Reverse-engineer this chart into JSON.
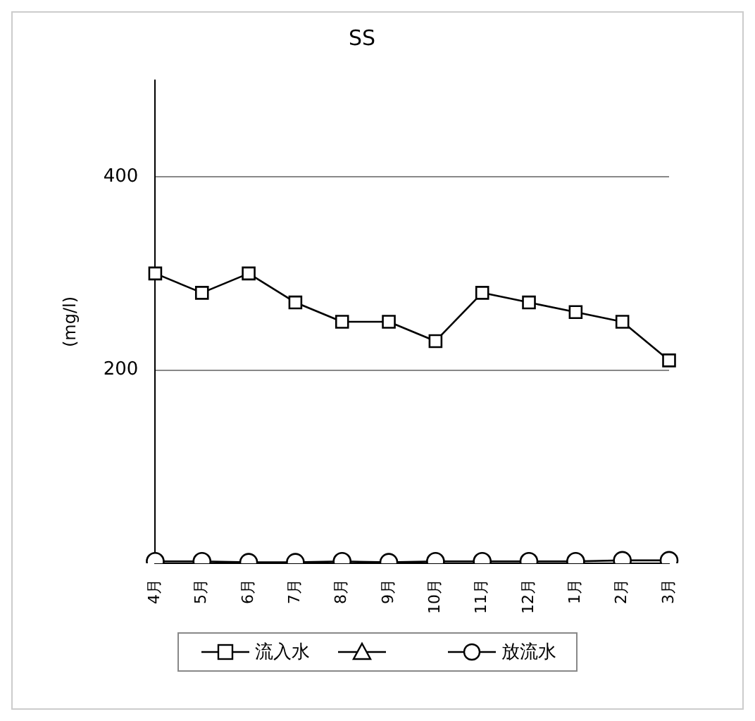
{
  "chart_data": {
    "type": "line",
    "title": "SS",
    "ylabel": "(mg/l)",
    "categories": [
      "4月",
      "5月",
      "6月",
      "7月",
      "8月",
      "9月",
      "10月",
      "11月",
      "12月",
      "1月",
      "2月",
      "3月"
    ],
    "series": [
      {
        "name": "流入水",
        "color": "#000000",
        "marker": "square",
        "values": [
          300,
          280,
          300,
          270,
          250,
          250,
          230,
          280,
          270,
          260,
          250,
          210
        ]
      },
      {
        "color": "#000000",
        "marker": "triangle",
        "values": [
          null,
          null,
          null,
          null,
          null,
          null,
          null,
          null,
          null,
          null,
          null,
          null
        ]
      },
      {
        "name": "放流水",
        "color": "#000000",
        "marker": "circle",
        "values": [
          2,
          2,
          1,
          1,
          2,
          1,
          2,
          2,
          2,
          2,
          3,
          3
        ]
      }
    ],
    "ylim": [
      0,
      500
    ],
    "yticks": [
      200,
      400
    ],
    "grid": "y",
    "legend": "bottom",
    "line_style": "solid"
  }
}
